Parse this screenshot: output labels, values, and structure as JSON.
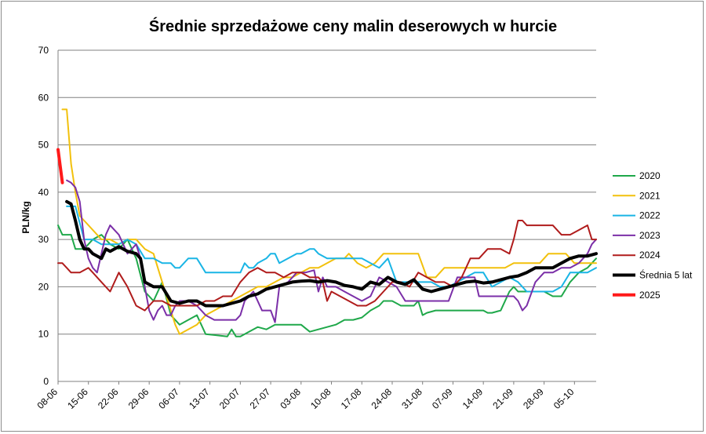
{
  "chart_data": {
    "type": "line",
    "title": "Średnie sprzedażowe ceny malin deserowych w hurcie",
    "ylabel": "PLN/kg",
    "xlabel": "",
    "ylim": [
      0,
      70
    ],
    "yticks": [
      0,
      10,
      20,
      30,
      40,
      50,
      60,
      70
    ],
    "grid": "horizontal",
    "legend_position": "right",
    "x_day_range": [
      "08-06",
      "10-10"
    ],
    "categories": [
      "08-06",
      "15-06",
      "22-06",
      "29-06",
      "06-07",
      "13-07",
      "20-07",
      "27-07",
      "03-08",
      "10-08",
      "17-08",
      "24-08",
      "31-08",
      "07-09",
      "14-09",
      "21-09",
      "28-09",
      "05-10"
    ],
    "series": [
      {
        "name": "2020",
        "color": "#1fa84a",
        "width": 2,
        "x": [
          "08-06",
          "09-06",
          "10-06",
          "11-06",
          "12-06",
          "14-06",
          "16-06",
          "18-06",
          "20-06",
          "22-06",
          "24-06",
          "26-06",
          "28-06",
          "30-06",
          "02-07",
          "04-07",
          "06-07",
          "08-07",
          "10-07",
          "12-07",
          "14-07",
          "16-07",
          "17-07",
          "18-07",
          "19-07",
          "20-07",
          "22-07",
          "24-07",
          "26-07",
          "28-07",
          "30-07",
          "01-08",
          "03-08",
          "05-08",
          "07-08",
          "09-08",
          "11-08",
          "13-08",
          "15-08",
          "17-08",
          "19-08",
          "21-08",
          "22-08",
          "24-08",
          "26-08",
          "28-08",
          "29-08",
          "30-08",
          "31-08",
          "01-09",
          "03-09",
          "05-09",
          "07-09",
          "09-09",
          "11-09",
          "13-09",
          "14-09",
          "15-09",
          "16-09",
          "18-09",
          "20-09",
          "21-09",
          "22-09",
          "24-09",
          "26-09",
          "28-09",
          "30-09",
          "02-10",
          "04-10",
          "06-10",
          "08-10",
          "10-10"
        ],
        "y": [
          33,
          31,
          31,
          31,
          28,
          28,
          30,
          31,
          29,
          28,
          30,
          26,
          19,
          17,
          21,
          14,
          12,
          13,
          14,
          10,
          9.8,
          9.6,
          9.5,
          11,
          9.5,
          9.5,
          10.5,
          11.5,
          11,
          12,
          12,
          12,
          12,
          10.5,
          11,
          11.5,
          12,
          13,
          13,
          13.5,
          15,
          16,
          17,
          17,
          16,
          16,
          16,
          17,
          14,
          14.5,
          15,
          15,
          15,
          15,
          15,
          15,
          15,
          14.5,
          14.5,
          15,
          19,
          20,
          19,
          19,
          19,
          19,
          18,
          18,
          21,
          23,
          24,
          26
        ]
      },
      {
        "name": "2021",
        "color": "#f2c10d",
        "width": 2,
        "x": [
          "09-06",
          "10-06",
          "11-06",
          "12-06",
          "13-06",
          "14-06",
          "16-06",
          "18-06",
          "20-06",
          "22-06",
          "24-06",
          "26-06",
          "28-06",
          "30-06",
          "01-07",
          "02-07",
          "03-07",
          "04-07",
          "05-07",
          "06-07",
          "08-07",
          "10-07",
          "12-07",
          "14-07",
          "16-07",
          "18-07",
          "20-07",
          "22-07",
          "24-07",
          "26-07",
          "28-07",
          "30-07",
          "01-08",
          "03-08",
          "05-08",
          "07-08",
          "09-08",
          "11-08",
          "13-08",
          "14-08",
          "16-08",
          "18-08",
          "20-08",
          "22-08",
          "24-08",
          "26-08",
          "28-08",
          "30-08",
          "01-09",
          "03-09",
          "05-09",
          "07-09",
          "09-09",
          "11-09",
          "13-09",
          "15-09",
          "17-09",
          "19-09",
          "21-09",
          "23-09",
          "25-09",
          "27-09",
          "29-09",
          "01-10",
          "03-10",
          "05-10",
          "07-10",
          "09-10",
          "10-10"
        ],
        "y": [
          57.5,
          57.5,
          46,
          40,
          35,
          34,
          32,
          30,
          30,
          29,
          30,
          30,
          28,
          27,
          24,
          21,
          18,
          15,
          12,
          10,
          11,
          12,
          14,
          15,
          16,
          17,
          18,
          19,
          20,
          20,
          21,
          22,
          22,
          23,
          24,
          24,
          25,
          26,
          26,
          27,
          25,
          24,
          25,
          27,
          27,
          27,
          27,
          27,
          22,
          22,
          24,
          24,
          24,
          24,
          24,
          24,
          24,
          24,
          25,
          25,
          25,
          25,
          27,
          27,
          27,
          25,
          25,
          25,
          25
        ]
      },
      {
        "name": "2022",
        "color": "#1ab5e5",
        "width": 2,
        "x": [
          "10-06",
          "12-06",
          "14-06",
          "16-06",
          "18-06",
          "20-06",
          "22-06",
          "24-06",
          "26-06",
          "28-06",
          "30-06",
          "02-07",
          "04-07",
          "05-07",
          "06-07",
          "08-07",
          "09-07",
          "10-07",
          "12-07",
          "14-07",
          "16-07",
          "18-07",
          "20-07",
          "21-07",
          "22-07",
          "23-07",
          "24-07",
          "26-07",
          "27-07",
          "28-07",
          "29-07",
          "31-07",
          "02-08",
          "03-08",
          "05-08",
          "06-08",
          "07-08",
          "09-08",
          "11-08",
          "13-08",
          "15-08",
          "17-08",
          "19-08",
          "21-08",
          "23-08",
          "25-08",
          "27-08",
          "29-08",
          "31-08",
          "02-09",
          "04-09",
          "06-09",
          "08-09",
          "10-09",
          "12-09",
          "14-09",
          "16-09",
          "18-09",
          "20-09",
          "22-09",
          "24-09",
          "26-09",
          "28-09",
          "30-09",
          "02-10",
          "04-10",
          "06-10",
          "08-10",
          "10-10"
        ],
        "y": [
          37,
          37,
          30,
          30,
          29,
          29,
          29,
          30,
          29,
          26,
          26,
          25,
          25,
          24,
          24,
          26,
          26,
          26,
          23,
          23,
          23,
          23,
          23,
          25,
          24,
          24,
          25,
          26,
          27,
          27,
          25,
          26,
          27,
          27,
          28,
          28,
          27,
          26,
          26,
          26,
          26,
          26,
          25,
          24,
          26,
          21,
          21,
          21,
          21,
          21,
          20,
          20,
          21,
          22,
          23,
          23,
          20,
          21,
          22,
          21,
          19,
          19,
          19,
          19,
          20,
          23,
          23,
          23,
          24
        ]
      },
      {
        "name": "2023",
        "color": "#7b2fa8",
        "width": 2,
        "x": [
          "10-06",
          "11-06",
          "12-06",
          "13-06",
          "14-06",
          "15-06",
          "16-06",
          "17-06",
          "18-06",
          "19-06",
          "20-06",
          "21-06",
          "22-06",
          "23-06",
          "24-06",
          "25-06",
          "26-06",
          "27-06",
          "28-06",
          "29-06",
          "30-06",
          "01-07",
          "02-07",
          "03-07",
          "04-07",
          "05-07",
          "06-07",
          "08-07",
          "10-07",
          "12-07",
          "14-07",
          "16-07",
          "18-07",
          "19-07",
          "20-07",
          "21-07",
          "22-07",
          "23-07",
          "25-07",
          "27-07",
          "28-07",
          "29-07",
          "31-07",
          "02-08",
          "04-08",
          "06-08",
          "07-08",
          "08-08",
          "09-08",
          "11-08",
          "13-08",
          "15-08",
          "17-08",
          "19-08",
          "21-08",
          "23-08",
          "25-08",
          "27-08",
          "29-08",
          "31-08",
          "02-09",
          "04-09",
          "06-09",
          "08-09",
          "10-09",
          "12-09",
          "13-09",
          "14-09",
          "16-09",
          "18-09",
          "20-09",
          "21-09",
          "22-09",
          "23-09",
          "24-09",
          "26-09",
          "28-09",
          "30-09",
          "02-10",
          "04-10",
          "06-10",
          "08-10",
          "09-10",
          "10-10"
        ],
        "y": [
          42.5,
          42,
          41,
          38,
          30,
          26,
          24,
          23,
          27,
          31,
          33,
          32,
          31,
          29,
          27,
          28,
          29,
          26,
          20,
          15,
          13,
          15,
          16,
          14,
          14,
          16,
          17,
          17,
          16,
          14,
          13,
          13,
          13,
          13,
          14,
          17,
          18,
          19,
          15,
          15,
          12.5,
          20,
          21,
          23,
          23,
          23.5,
          19,
          22,
          20,
          20,
          19,
          18,
          17,
          18,
          22,
          21,
          20,
          17,
          17,
          17,
          17,
          17,
          17,
          22,
          22,
          22,
          18,
          18,
          18,
          18,
          18,
          18,
          17,
          15,
          16,
          21,
          23,
          23,
          24,
          24,
          25,
          27,
          29,
          30
        ]
      },
      {
        "name": "2024",
        "color": "#b01c1c",
        "width": 2,
        "x": [
          "08-06",
          "09-06",
          "10-06",
          "11-06",
          "13-06",
          "15-06",
          "16-06",
          "18-06",
          "20-06",
          "22-06",
          "24-06",
          "26-06",
          "28-06",
          "30-06",
          "02-07",
          "04-07",
          "06-07",
          "08-07",
          "10-07",
          "12-07",
          "14-07",
          "16-07",
          "18-07",
          "20-07",
          "22-07",
          "24-07",
          "26-07",
          "28-07",
          "30-07",
          "01-08",
          "03-08",
          "05-08",
          "07-08",
          "08-08",
          "09-08",
          "10-08",
          "12-08",
          "14-08",
          "16-08",
          "18-08",
          "20-08",
          "22-08",
          "24-08",
          "26-08",
          "28-08",
          "30-08",
          "01-09",
          "03-09",
          "05-09",
          "07-09",
          "09-09",
          "11-09",
          "13-09",
          "15-09",
          "17-09",
          "18-09",
          "20-09",
          "21-09",
          "22-09",
          "23-09",
          "24-09",
          "26-09",
          "28-09",
          "30-09",
          "02-10",
          "04-10",
          "06-10",
          "08-10",
          "09-10",
          "10-10"
        ],
        "y": [
          25,
          25,
          24,
          23,
          23,
          24,
          23,
          21,
          19,
          23,
          20,
          16,
          15,
          17,
          17,
          16,
          16,
          16,
          16,
          17,
          17,
          18,
          18,
          21,
          23,
          24,
          23,
          23,
          22,
          23,
          23,
          22,
          22,
          21,
          17,
          19,
          18,
          17,
          16,
          16,
          17,
          19,
          21,
          21,
          20,
          23,
          22,
          21,
          21,
          20,
          22,
          26,
          26,
          28,
          28,
          28,
          27,
          30,
          34,
          34,
          33,
          33,
          33,
          33,
          31,
          31,
          32,
          33,
          30,
          30
        ]
      },
      {
        "name": "Średnia 5 lat",
        "color": "#000000",
        "width": 4,
        "x": [
          "10-06",
          "11-06",
          "12-06",
          "13-06",
          "14-06",
          "15-06",
          "16-06",
          "17-06",
          "18-06",
          "19-06",
          "20-06",
          "22-06",
          "24-06",
          "26-06",
          "27-06",
          "28-06",
          "30-06",
          "02-07",
          "04-07",
          "06-07",
          "08-07",
          "10-07",
          "12-07",
          "14-07",
          "16-07",
          "18-07",
          "20-07",
          "22-07",
          "24-07",
          "26-07",
          "28-07",
          "30-07",
          "01-08",
          "03-08",
          "05-08",
          "07-08",
          "09-08",
          "11-08",
          "13-08",
          "15-08",
          "17-08",
          "19-08",
          "21-08",
          "23-08",
          "25-08",
          "27-08",
          "29-08",
          "31-08",
          "02-09",
          "04-09",
          "06-09",
          "08-09",
          "10-09",
          "12-09",
          "14-09",
          "16-09",
          "18-09",
          "20-09",
          "22-09",
          "24-09",
          "26-09",
          "28-09",
          "30-09",
          "02-10",
          "04-10",
          "06-10",
          "08-10",
          "10-10"
        ],
        "y": [
          38,
          37.5,
          34,
          30,
          28,
          28,
          27,
          26.5,
          26,
          28,
          27.5,
          28.5,
          27.5,
          27,
          26,
          21,
          20,
          20,
          17,
          16.5,
          17,
          17,
          16,
          16,
          16,
          16.5,
          17,
          18,
          18.5,
          19.5,
          20,
          20.5,
          21,
          21.2,
          21.3,
          21,
          21.3,
          21,
          20.3,
          20,
          19.5,
          21,
          20.5,
          22,
          21,
          20.5,
          21.5,
          19.5,
          19,
          19.5,
          20,
          20.5,
          21,
          21.2,
          20.8,
          21,
          21.5,
          22,
          22.3,
          23,
          24,
          24,
          24,
          25,
          26,
          26.5,
          26.5,
          27
        ]
      },
      {
        "name": "2025",
        "color": "#ff1a1a",
        "width": 4,
        "x": [
          "08-06",
          "09-06"
        ],
        "y": [
          49,
          42
        ]
      }
    ]
  }
}
